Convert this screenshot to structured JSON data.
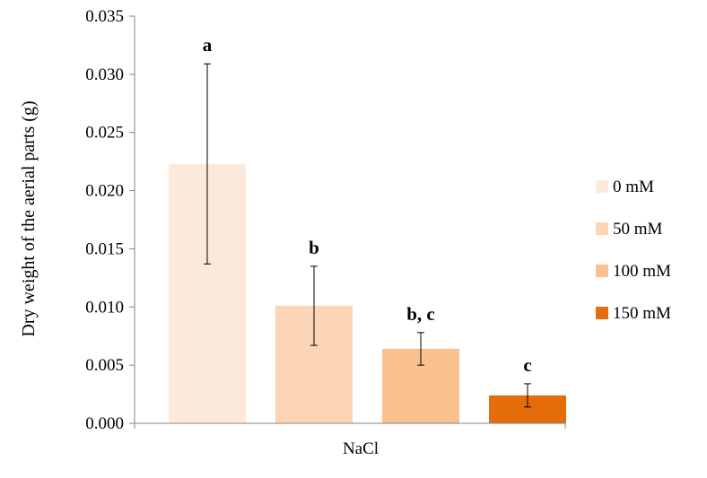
{
  "chart_data": {
    "type": "bar",
    "title": "",
    "xlabel": "",
    "ylabel": "Dry weight of the aerial parts  (g)",
    "categories": [
      "NaCl"
    ],
    "ylim": [
      0,
      0.035
    ],
    "yticks": [
      "0.000",
      "0.005",
      "0.010",
      "0.015",
      "0.020",
      "0.025",
      "0.030",
      "0.035"
    ],
    "grid": false,
    "legend_position": "right",
    "series": [
      {
        "name": "0 mM",
        "values": [
          0.0223
        ],
        "error": [
          0.0086
        ],
        "letter": "a",
        "color": "#fde9d9"
      },
      {
        "name": "50 mM",
        "values": [
          0.0101
        ],
        "error": [
          0.0034
        ],
        "letter": "b",
        "color": "#fbd5b5"
      },
      {
        "name": "100 mM",
        "values": [
          0.0064
        ],
        "error": [
          0.0014
        ],
        "letter": "b, c",
        "color": "#fac090"
      },
      {
        "name": "150 mM",
        "values": [
          0.0024
        ],
        "error": [
          0.001
        ],
        "letter": "c",
        "color": "#e46c0a"
      }
    ]
  }
}
